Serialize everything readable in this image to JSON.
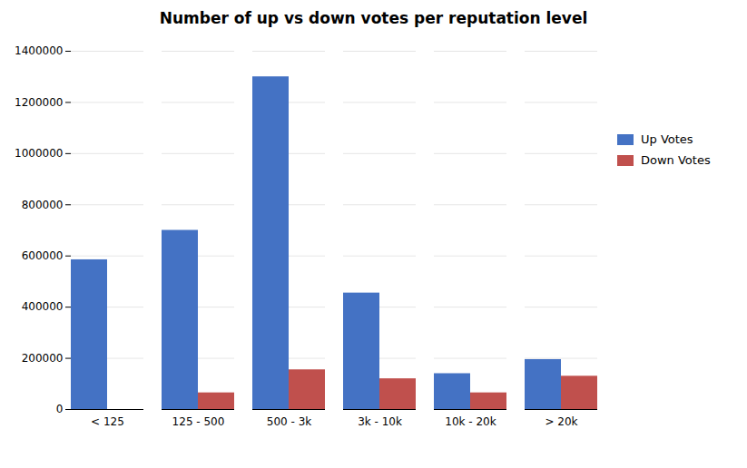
{
  "chart_data": {
    "type": "bar",
    "title": "Number of up vs down votes per reputation level",
    "categories": [
      "< 125",
      "125 - 500",
      "500 - 3k",
      "3k - 10k",
      "10k - 20k",
      "> 20k"
    ],
    "series": [
      {
        "name": "Up Votes",
        "color": "#4472C4",
        "values": [
          585000,
          700000,
          1300000,
          455000,
          140000,
          195000
        ]
      },
      {
        "name": "Down Votes",
        "color": "#C0504D",
        "values": [
          0,
          65000,
          155000,
          120000,
          65000,
          130000
        ]
      }
    ],
    "ylim": [
      0,
      1400000
    ],
    "yticks": [
      0,
      200000,
      400000,
      600000,
      800000,
      1000000,
      1200000,
      1400000
    ],
    "grid": true,
    "legend": "right"
  }
}
